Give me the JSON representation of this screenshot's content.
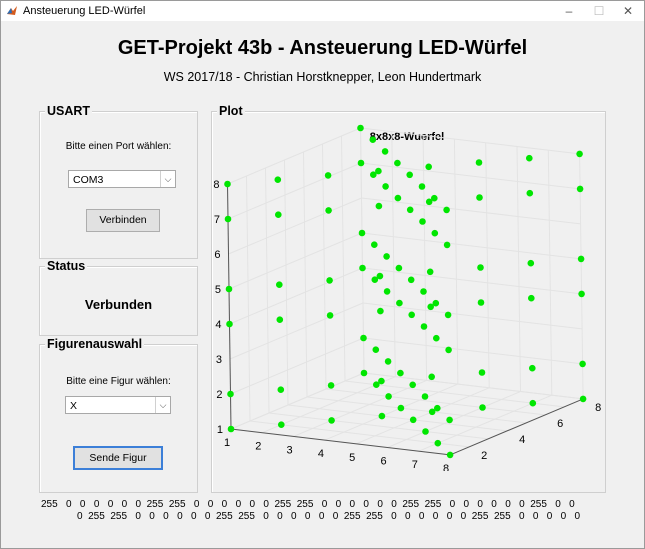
{
  "window": {
    "title": "Ansteuerung LED-Würfel",
    "minimize": "–",
    "maximize": "☐",
    "close": "✕"
  },
  "header": {
    "title": "GET-Projekt 43b - Ansteuerung LED-Würfel",
    "subtitle": "WS 2017/18 - Christian Horstknepper, Leon Hundertmark"
  },
  "usart": {
    "title": "USART",
    "port_prompt": "Bitte einen Port wählen:",
    "port_value": "COM3",
    "connect_label": "Verbinden"
  },
  "status": {
    "title": "Status",
    "value": "Verbunden"
  },
  "figure": {
    "title": "Figurenauswahl",
    "prompt": "Bitte eine Figur wählen:",
    "value": "X",
    "send_label": "Sende Figur"
  },
  "plot": {
    "title": "Plot"
  },
  "data_rows": {
    "row1": "255   0   0   0   0   0   0  255  255   0   0   0   0   0   0  255  255   0   0   0   0   0   0  255  255   0   0   0   0   0   0  255   0   0",
    "row2": "0  255  255   0   0   0   0   0   0  255  255   0   0   0   0   0   0  255  255   0   0   0   0   0   0  255  255   0   0   0   0   0"
  },
  "colors": {
    "led": "#00e600",
    "background": "#f0f0f0"
  },
  "chart_data": {
    "type": "scatter",
    "title": "8x8x8-Wuerfel",
    "x_ticks": [
      "1",
      "2",
      "3",
      "4",
      "5",
      "6",
      "7",
      "8"
    ],
    "y_ticks": [
      "2",
      "4",
      "6",
      "8"
    ],
    "z_ticks": [
      "1",
      "2",
      "3",
      "4",
      "5",
      "6",
      "7",
      "8"
    ],
    "xlim": [
      1,
      8
    ],
    "ylim": [
      1,
      8
    ],
    "zlim": [
      1,
      8
    ],
    "grid": true,
    "levels": [
      1,
      2,
      4,
      5,
      7,
      8
    ],
    "pattern": "X"
  }
}
